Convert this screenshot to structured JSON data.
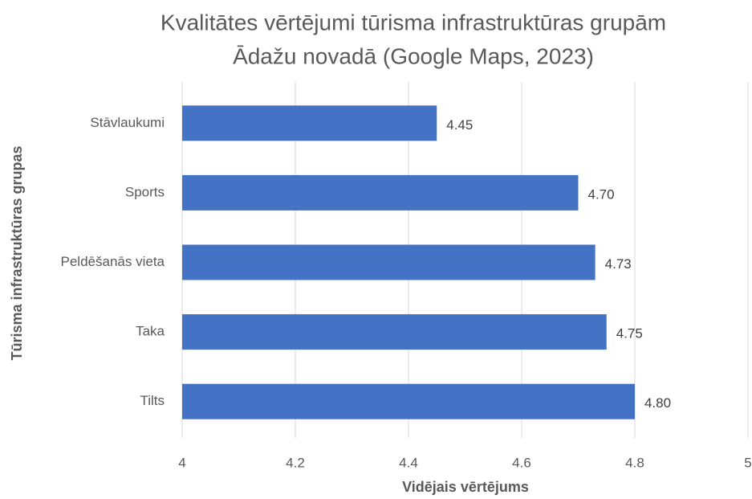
{
  "chart_data": {
    "type": "hbar",
    "title": [
      "Kvalitātes vērtējumi tūrisma infrastruktūras grupām",
      "Ādažu novadā (Google Maps, 2023)"
    ],
    "x_label": "Vidējais vērtējums",
    "y_label": "Tūrisma infrastruktūras grupas",
    "categories": [
      "Stāvlaukumi",
      "Sports",
      "Peldēšanās vieta",
      "Taka",
      "Tilts"
    ],
    "values": [
      4.45,
      4.7,
      4.73,
      4.75,
      4.8
    ],
    "value_labels": [
      "4.45",
      "4.70",
      "4.73",
      "4.75",
      "4.80"
    ],
    "color": "#4472c4",
    "xlim": [
      4,
      5
    ],
    "xticks": [
      4,
      4.2,
      4.4,
      4.6,
      4.8,
      5
    ],
    "grid": true
  }
}
